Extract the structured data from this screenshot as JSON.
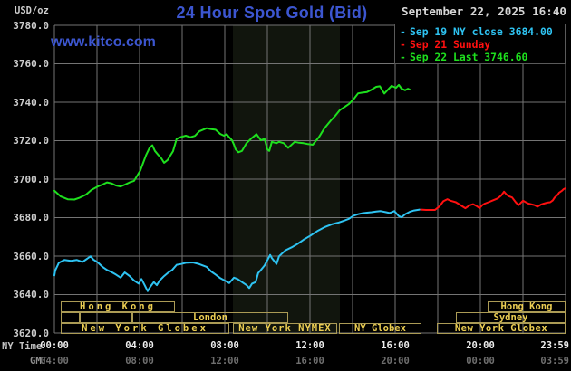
{
  "header": {
    "unit_label": "USD/oz",
    "title": "24 Hour Spot Gold (Bid)",
    "datetime": "September 22, 2025 16:40",
    "watermark": "www.kitco.com"
  },
  "colors": {
    "background": "#000000",
    "title_blue": "#3c56d0",
    "grid": "#747474",
    "band": "#11150d",
    "axis_text": "#cdcdcd",
    "session_border": "#ab9b55",
    "session_text": "#ecce52",
    "legend_border": "#5a5a5a",
    "blue": "#2ec3f2",
    "red": "#ff1010",
    "green": "#1ee01e"
  },
  "legend": {
    "items": [
      {
        "marker": "-",
        "label": "Sep 19 NY close 3684.00",
        "color": "#2ec3f2"
      },
      {
        "marker": "-",
        "label": "Sep 21 Sunday",
        "color": "#ff1010"
      },
      {
        "marker": "-",
        "label": "Sep 22 Last 3746.60",
        "color": "#1ee01e"
      }
    ]
  },
  "chart_data": {
    "type": "line",
    "title": "24 Hour Spot Gold (Bid)",
    "ylabel": "USD/oz",
    "y_axis": {
      "min": 3620,
      "max": 3780,
      "tick_step": 20
    },
    "x_axis": {
      "label_row1": "NY Time",
      "label_row2": "GMT",
      "hours_range": [
        0,
        24
      ],
      "grid_step_hours": 2,
      "ticks": [
        {
          "h": 0,
          "ny": "00:00",
          "gmt": "04:00",
          "align": "center"
        },
        {
          "h": 4,
          "ny": "04:00",
          "gmt": "08:00",
          "align": "center"
        },
        {
          "h": 8,
          "ny": "08:00",
          "gmt": "12:00",
          "align": "center"
        },
        {
          "h": 12,
          "ny": "12:00",
          "gmt": "16:00",
          "align": "center"
        },
        {
          "h": 16,
          "ny": "16:00",
          "gmt": "20:00",
          "align": "center"
        },
        {
          "h": 20,
          "ny": "20:00",
          "gmt": "00:00",
          "align": "center"
        },
        {
          "h": 24,
          "ny": "23:59",
          "gmt": "03:59",
          "align": "right"
        }
      ]
    },
    "highlight_band_hours": [
      8.38,
      13.4
    ],
    "series": [
      {
        "id": "sep19",
        "name": "Sep 19 NY close 3684.00",
        "color": "#2ec3f2",
        "points": [
          [
            0,
            3650
          ],
          [
            0.04,
            3652.5
          ],
          [
            0.21,
            3656.5
          ],
          [
            0.47,
            3658
          ],
          [
            0.77,
            3657.5
          ],
          [
            1.06,
            3658
          ],
          [
            1.32,
            3657
          ],
          [
            1.53,
            3658.6
          ],
          [
            1.7,
            3659.9
          ],
          [
            1.83,
            3658.2
          ],
          [
            2.04,
            3656.7
          ],
          [
            2.26,
            3654.4
          ],
          [
            2.47,
            3652.8
          ],
          [
            2.68,
            3651.7
          ],
          [
            2.89,
            3650.4
          ],
          [
            3.11,
            3648.8
          ],
          [
            3.3,
            3651.5
          ],
          [
            3.53,
            3649.6
          ],
          [
            3.74,
            3647.3
          ],
          [
            3.96,
            3645.7
          ],
          [
            4.09,
            3648.1
          ],
          [
            4.24,
            3644.9
          ],
          [
            4.38,
            3641.8
          ],
          [
            4.51,
            3644.2
          ],
          [
            4.67,
            3646.5
          ],
          [
            4.81,
            3644.9
          ],
          [
            4.94,
            3647.3
          ],
          [
            5.15,
            3649.6
          ],
          [
            5.32,
            3651.2
          ],
          [
            5.53,
            3652.8
          ],
          [
            5.74,
            3655.5
          ],
          [
            5.96,
            3655.9
          ],
          [
            6.17,
            3656.5
          ],
          [
            6.51,
            3656.7
          ],
          [
            6.81,
            3655.8
          ],
          [
            7.15,
            3654.4
          ],
          [
            7.36,
            3652
          ],
          [
            7.57,
            3650.4
          ],
          [
            7.79,
            3648.5
          ],
          [
            8,
            3647.3
          ],
          [
            8.21,
            3646
          ],
          [
            8.43,
            3648.8
          ],
          [
            8.6,
            3648.1
          ],
          [
            8.81,
            3646.5
          ],
          [
            9.02,
            3644.9
          ],
          [
            9.15,
            3643.4
          ],
          [
            9.28,
            3645.7
          ],
          [
            9.45,
            3646.5
          ],
          [
            9.57,
            3651.2
          ],
          [
            9.7,
            3652.8
          ],
          [
            9.87,
            3655.1
          ],
          [
            10.13,
            3660.6
          ],
          [
            10.21,
            3659
          ],
          [
            10.43,
            3655.9
          ],
          [
            10.55,
            3659.9
          ],
          [
            10.85,
            3663
          ],
          [
            11.15,
            3664.6
          ],
          [
            11.4,
            3666.2
          ],
          [
            11.7,
            3668.5
          ],
          [
            12,
            3670.5
          ],
          [
            12.34,
            3673
          ],
          [
            12.68,
            3675
          ],
          [
            13.02,
            3676.5
          ],
          [
            13.36,
            3677.5
          ],
          [
            13.62,
            3678.5
          ],
          [
            13.83,
            3679.4
          ],
          [
            14.04,
            3681
          ],
          [
            14.26,
            3681.8
          ],
          [
            14.47,
            3682.3
          ],
          [
            14.68,
            3682.6
          ],
          [
            14.89,
            3682.8
          ],
          [
            15.11,
            3683.2
          ],
          [
            15.32,
            3683.4
          ],
          [
            15.57,
            3682.8
          ],
          [
            15.74,
            3682.4
          ],
          [
            15.96,
            3683.4
          ],
          [
            16.17,
            3680.8
          ],
          [
            16.3,
            3680.2
          ],
          [
            16.47,
            3681.8
          ],
          [
            16.68,
            3683
          ],
          [
            16.89,
            3683.7
          ],
          [
            17.15,
            3684.2
          ]
        ]
      },
      {
        "id": "sep21",
        "name": "Sep 21 Sunday",
        "color": "#ff1010",
        "points": [
          [
            17.21,
            3684.2
          ],
          [
            17.45,
            3684
          ],
          [
            17.87,
            3684
          ],
          [
            18.09,
            3686
          ],
          [
            18.26,
            3688.5
          ],
          [
            18.45,
            3689.6
          ],
          [
            18.6,
            3688.8
          ],
          [
            18.85,
            3688
          ],
          [
            19.08,
            3686.4
          ],
          [
            19.3,
            3684.9
          ],
          [
            19.49,
            3686.4
          ],
          [
            19.66,
            3687
          ],
          [
            19.83,
            3686
          ],
          [
            19.96,
            3685
          ],
          [
            20.09,
            3686.5
          ],
          [
            20.21,
            3687.3
          ],
          [
            20.38,
            3688
          ],
          [
            20.55,
            3688.8
          ],
          [
            20.81,
            3690
          ],
          [
            20.98,
            3691.5
          ],
          [
            21.11,
            3693.5
          ],
          [
            21.23,
            3692
          ],
          [
            21.36,
            3691
          ],
          [
            21.49,
            3690.5
          ],
          [
            21.66,
            3688
          ],
          [
            21.79,
            3686.5
          ],
          [
            22,
            3688.8
          ],
          [
            22.13,
            3688
          ],
          [
            22.26,
            3687.3
          ],
          [
            22.43,
            3686.8
          ],
          [
            22.55,
            3686.5
          ],
          [
            22.68,
            3685.7
          ],
          [
            22.85,
            3686.8
          ],
          [
            22.98,
            3687.3
          ],
          [
            23.15,
            3687.8
          ],
          [
            23.28,
            3688
          ],
          [
            23.4,
            3689
          ],
          [
            23.49,
            3690.5
          ],
          [
            23.62,
            3691.8
          ],
          [
            23.7,
            3693
          ],
          [
            23.83,
            3694
          ],
          [
            23.91,
            3694.8
          ],
          [
            24,
            3695.3
          ]
        ]
      },
      {
        "id": "sep22",
        "name": "Sep 22 Last 3746.60",
        "color": "#1ee01e",
        "points": [
          [
            0,
            3694
          ],
          [
            0.3,
            3691
          ],
          [
            0.64,
            3689.5
          ],
          [
            0.94,
            3689.4
          ],
          [
            1.19,
            3690.4
          ],
          [
            1.49,
            3692
          ],
          [
            1.74,
            3694.4
          ],
          [
            2.04,
            3696.2
          ],
          [
            2.26,
            3697.2
          ],
          [
            2.47,
            3698.3
          ],
          [
            2.68,
            3697.8
          ],
          [
            2.89,
            3696.7
          ],
          [
            3.11,
            3696.2
          ],
          [
            3.32,
            3697.2
          ],
          [
            3.53,
            3698.3
          ],
          [
            3.74,
            3699.1
          ],
          [
            3.87,
            3701.4
          ],
          [
            4.04,
            3704.6
          ],
          [
            4.17,
            3708.5
          ],
          [
            4.3,
            3712.4
          ],
          [
            4.47,
            3716.3
          ],
          [
            4.6,
            3717.6
          ],
          [
            4.72,
            3714.7
          ],
          [
            4.89,
            3712.4
          ],
          [
            5.02,
            3710.8
          ],
          [
            5.15,
            3708.5
          ],
          [
            5.32,
            3710
          ],
          [
            5.45,
            3712.4
          ],
          [
            5.57,
            3714.5
          ],
          [
            5.74,
            3721
          ],
          [
            5.96,
            3722
          ],
          [
            6.17,
            3722.6
          ],
          [
            6.38,
            3721.8
          ],
          [
            6.6,
            3722.5
          ],
          [
            6.81,
            3724.9
          ],
          [
            7.15,
            3726.5
          ],
          [
            7.36,
            3726
          ],
          [
            7.57,
            3725.7
          ],
          [
            7.79,
            3723.5
          ],
          [
            7.96,
            3722.6
          ],
          [
            8.09,
            3723.4
          ],
          [
            8.21,
            3721.8
          ],
          [
            8.34,
            3720.2
          ],
          [
            8.43,
            3718
          ],
          [
            8.51,
            3715.5
          ],
          [
            8.64,
            3714
          ],
          [
            8.81,
            3714.7
          ],
          [
            9.02,
            3718.7
          ],
          [
            9.23,
            3721
          ],
          [
            9.49,
            3723.4
          ],
          [
            9.7,
            3720.2
          ],
          [
            9.87,
            3721
          ],
          [
            10,
            3715.5
          ],
          [
            10.09,
            3714.7
          ],
          [
            10.21,
            3719.4
          ],
          [
            10.43,
            3718.7
          ],
          [
            10.55,
            3719.4
          ],
          [
            10.77,
            3718.7
          ],
          [
            10.98,
            3716.3
          ],
          [
            11.28,
            3719.4
          ],
          [
            11.49,
            3718.9
          ],
          [
            11.7,
            3718.7
          ],
          [
            11.91,
            3718.2
          ],
          [
            12.13,
            3717.9
          ],
          [
            12.43,
            3722
          ],
          [
            12.68,
            3726.5
          ],
          [
            12.98,
            3730.5
          ],
          [
            13.19,
            3733
          ],
          [
            13.4,
            3735.9
          ],
          [
            13.62,
            3737.5
          ],
          [
            13.83,
            3739.1
          ],
          [
            14.04,
            3741.4
          ],
          [
            14.26,
            3744.6
          ],
          [
            14.47,
            3745
          ],
          [
            14.68,
            3745.3
          ],
          [
            14.89,
            3746.5
          ],
          [
            15.11,
            3748
          ],
          [
            15.28,
            3748.3
          ],
          [
            15.49,
            3744.5
          ],
          [
            15.66,
            3746.5
          ],
          [
            15.83,
            3748.5
          ],
          [
            16.04,
            3747.5
          ],
          [
            16.17,
            3749
          ],
          [
            16.3,
            3747
          ],
          [
            16.47,
            3746.2
          ],
          [
            16.6,
            3747
          ],
          [
            16.68,
            3746.6
          ]
        ]
      }
    ],
    "sessions": [
      {
        "row": 0,
        "start": 0.3,
        "end": 5.66,
        "label": "Hong Kong",
        "ls": 3
      },
      {
        "row": 0,
        "start": 20.34,
        "end": 24,
        "label": "Hong Kong",
        "ls": 0
      },
      {
        "row": 1,
        "start": 0.3,
        "end": 1.19,
        "label": "",
        "ls": 0
      },
      {
        "row": 1,
        "start": 1.19,
        "end": 3.66,
        "label": "",
        "ls": 0
      },
      {
        "row": 1,
        "start": 3.66,
        "end": 10.98,
        "label": "London",
        "ls": 0
      },
      {
        "row": 1,
        "start": 18.85,
        "end": 24,
        "label": "Sydney",
        "ls": 0
      },
      {
        "row": 2,
        "start": 0.3,
        "end": 8.21,
        "label": "New York Globex",
        "ls": 3
      },
      {
        "row": 2,
        "start": 8.38,
        "end": 13.28,
        "label": "New York NYMEX",
        "ls": 1
      },
      {
        "row": 2,
        "start": 13.36,
        "end": 17.23,
        "label": "NY Globex",
        "ls": 0
      },
      {
        "row": 2,
        "start": 17.96,
        "end": 24,
        "label": "New York Globex",
        "ls": 0.5
      }
    ]
  }
}
